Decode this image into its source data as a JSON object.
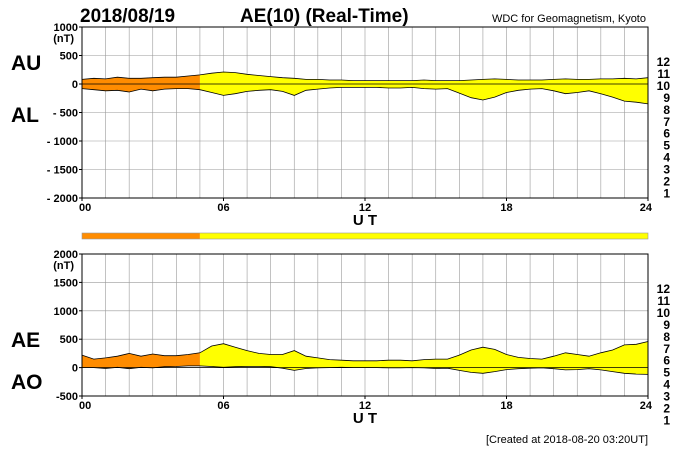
{
  "header": {
    "date": "2018/08/19",
    "title": "AE(10) (Real-Time)",
    "source": "WDC for Geomagnetism, Kyoto"
  },
  "footer": {
    "created": "[Created at 2018-08-20 03:20UT]"
  },
  "colors": {
    "orange": "#f08a24",
    "yellow": "#ffff22",
    "grid": "#9a9a9a"
  },
  "legend": [
    {
      "label": "12",
      "color": "#ff0066"
    },
    {
      "label": "11",
      "color": "#ff0000"
    },
    {
      "label": "10",
      "color": "#ff8c00"
    },
    {
      "label": "9",
      "color": "#ffff00"
    },
    {
      "label": "8",
      "color": "#7cff00"
    },
    {
      "label": "7",
      "color": "#00ffff"
    },
    {
      "label": "6",
      "color": "#0066ff"
    },
    {
      "label": "5",
      "color": "#2200cc"
    },
    {
      "label": "4",
      "color": "#cc00cc"
    },
    {
      "label": "3",
      "color": "#000000"
    },
    {
      "label": "2",
      "color": "#777777"
    },
    {
      "label": "1",
      "color": "#c8c8c8"
    }
  ],
  "chart_data": [
    {
      "type": "area",
      "panel": "AU/AL",
      "series_labels": [
        "AU",
        "AL"
      ],
      "unit_label": "(nT)",
      "xlabel": "U T",
      "x_ticks": [
        "00",
        "06",
        "12",
        "18",
        "24"
      ],
      "xlim": [
        0,
        24
      ],
      "ylim": [
        -2000,
        1000
      ],
      "y_ticks": [
        "1000",
        "500",
        "0",
        "- 500",
        "- 1000",
        "- 1500",
        "- 2000"
      ],
      "y_tick_values": [
        1000,
        500,
        0,
        -500,
        -1000,
        -1500,
        -2000
      ],
      "grid": true,
      "x": [
        0,
        0.5,
        1,
        1.5,
        2,
        2.5,
        3,
        3.5,
        4,
        4.5,
        5,
        5.5,
        6,
        6.5,
        7,
        7.5,
        8,
        8.5,
        9,
        9.5,
        10,
        10.5,
        11,
        11.5,
        12,
        12.5,
        13,
        13.5,
        14,
        14.5,
        15,
        15.5,
        16,
        16.5,
        17,
        17.5,
        18,
        18.5,
        19,
        19.5,
        20,
        20.5,
        21,
        21.5,
        22,
        22.5,
        23,
        23.5,
        24
      ],
      "AU": [
        80,
        100,
        90,
        120,
        100,
        100,
        110,
        120,
        120,
        140,
        160,
        190,
        210,
        200,
        170,
        150,
        130,
        110,
        100,
        80,
        80,
        70,
        70,
        60,
        60,
        60,
        60,
        60,
        60,
        70,
        60,
        60,
        60,
        70,
        80,
        90,
        80,
        70,
        70,
        70,
        80,
        90,
        80,
        80,
        90,
        90,
        100,
        90,
        110
      ],
      "AL": [
        -80,
        -100,
        -120,
        -110,
        -140,
        -90,
        -120,
        -90,
        -80,
        -80,
        -100,
        -150,
        -200,
        -170,
        -130,
        -110,
        -100,
        -130,
        -200,
        -110,
        -90,
        -70,
        -60,
        -60,
        -60,
        -60,
        -70,
        -70,
        -60,
        -80,
        -90,
        -80,
        -160,
        -240,
        -280,
        -230,
        -150,
        -110,
        -90,
        -80,
        -120,
        -170,
        -150,
        -120,
        -170,
        -230,
        -300,
        -320,
        -350
      ],
      "colorband": [
        {
          "from": 0,
          "to": 5,
          "level": "10"
        },
        {
          "from": 5,
          "to": 24,
          "level": "9"
        }
      ]
    },
    {
      "type": "area",
      "panel": "AE/AO",
      "series_labels": [
        "AE",
        "AO"
      ],
      "unit_label": "(nT)",
      "xlabel": "U T",
      "x_ticks": [
        "00",
        "06",
        "12",
        "18",
        "24"
      ],
      "xlim": [
        0,
        24
      ],
      "ylim": [
        -500,
        2000
      ],
      "y_ticks": [
        "2000",
        "1500",
        "1000",
        "500",
        "0",
        "-500"
      ],
      "y_tick_values": [
        2000,
        1500,
        1000,
        500,
        0,
        -500
      ],
      "grid": true,
      "x": [
        0,
        0.5,
        1,
        1.5,
        2,
        2.5,
        3,
        3.5,
        4,
        4.5,
        5,
        5.5,
        6,
        6.5,
        7,
        7.5,
        8,
        8.5,
        9,
        9.5,
        10,
        10.5,
        11,
        11.5,
        12,
        12.5,
        13,
        13.5,
        14,
        14.5,
        15,
        15.5,
        16,
        16.5,
        17,
        17.5,
        18,
        18.5,
        19,
        19.5,
        20,
        20.5,
        21,
        21.5,
        22,
        22.5,
        23,
        23.5,
        24
      ],
      "AE": [
        220,
        150,
        170,
        200,
        250,
        200,
        240,
        210,
        210,
        230,
        260,
        380,
        420,
        360,
        300,
        250,
        230,
        230,
        300,
        200,
        170,
        140,
        130,
        120,
        120,
        120,
        130,
        130,
        120,
        140,
        150,
        150,
        220,
        310,
        360,
        320,
        230,
        180,
        160,
        150,
        200,
        260,
        230,
        200,
        260,
        310,
        400,
        410,
        460
      ],
      "AO": [
        0,
        0,
        -15,
        5,
        -20,
        5,
        -5,
        15,
        20,
        30,
        30,
        20,
        5,
        15,
        20,
        20,
        15,
        -10,
        -50,
        -15,
        -5,
        0,
        5,
        0,
        0,
        0,
        -5,
        -5,
        0,
        -5,
        -15,
        -10,
        -50,
        -85,
        -100,
        -70,
        -35,
        -20,
        -10,
        -5,
        -20,
        -40,
        -35,
        -20,
        -40,
        -70,
        -100,
        -115,
        -120
      ],
      "colorband": [
        {
          "from": 0,
          "to": 5,
          "level": "10"
        },
        {
          "from": 5,
          "to": 24,
          "level": "9"
        }
      ]
    }
  ],
  "mid_band": [
    {
      "from": 0,
      "to": 5,
      "level": "10"
    },
    {
      "from": 5,
      "to": 24,
      "level": "9"
    }
  ]
}
